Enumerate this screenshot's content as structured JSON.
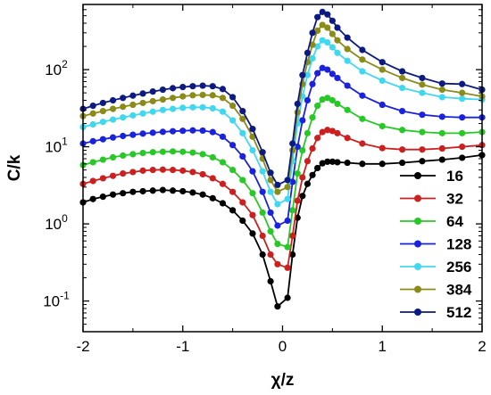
{
  "chart_data": {
    "type": "line",
    "xlabel": "χ/z",
    "ylabel": "C/k",
    "xlim": [
      -2,
      2
    ],
    "ylim": [
      0.04,
      700
    ],
    "yscale": "log",
    "x_ticks": [
      "-2",
      "-1",
      "0",
      "1",
      "2"
    ],
    "y_ticks": [
      {
        "base": "10",
        "exp": "-1"
      },
      {
        "base": "10",
        "exp": "0"
      },
      {
        "base": "10",
        "exp": "1"
      },
      {
        "base": "10",
        "exp": "2"
      }
    ],
    "legend_position": "bottom-right",
    "series": [
      {
        "name": "16",
        "color": "#000000",
        "points": [
          [
            -2,
            1.9
          ],
          [
            -1.9,
            2.1
          ],
          [
            -1.8,
            2.25
          ],
          [
            -1.7,
            2.4
          ],
          [
            -1.6,
            2.5
          ],
          [
            -1.5,
            2.6
          ],
          [
            -1.4,
            2.65
          ],
          [
            -1.3,
            2.7
          ],
          [
            -1.2,
            2.75
          ],
          [
            -1.1,
            2.7
          ],
          [
            -1.0,
            2.65
          ],
          [
            -0.9,
            2.55
          ],
          [
            -0.8,
            2.4
          ],
          [
            -0.7,
            2.15
          ],
          [
            -0.6,
            1.85
          ],
          [
            -0.5,
            1.5
          ],
          [
            -0.4,
            1.1
          ],
          [
            -0.3,
            0.75
          ],
          [
            -0.2,
            0.4
          ],
          [
            -0.12,
            0.18
          ],
          [
            -0.05,
            0.085
          ],
          [
            0.05,
            0.11
          ],
          [
            0.1,
            0.4
          ],
          [
            0.15,
            1.2
          ],
          [
            0.2,
            2.3
          ],
          [
            0.25,
            3.3
          ],
          [
            0.3,
            4.3
          ],
          [
            0.35,
            5.3
          ],
          [
            0.4,
            6.1
          ],
          [
            0.45,
            6.4
          ],
          [
            0.5,
            6.4
          ],
          [
            0.55,
            6.3
          ],
          [
            0.65,
            6.2
          ],
          [
            0.8,
            6.0
          ],
          [
            1.0,
            6.0
          ],
          [
            1.2,
            6.2
          ],
          [
            1.4,
            6.5
          ],
          [
            1.6,
            6.8
          ],
          [
            1.8,
            7.2
          ],
          [
            2.0,
            7.8
          ]
        ]
      },
      {
        "name": "32",
        "color": "#cc2020",
        "points": [
          [
            -2,
            3.3
          ],
          [
            -1.9,
            3.6
          ],
          [
            -1.8,
            3.9
          ],
          [
            -1.7,
            4.2
          ],
          [
            -1.6,
            4.5
          ],
          [
            -1.5,
            4.7
          ],
          [
            -1.4,
            4.9
          ],
          [
            -1.3,
            5.0
          ],
          [
            -1.2,
            5.05
          ],
          [
            -1.1,
            5.0
          ],
          [
            -1.0,
            4.9
          ],
          [
            -0.9,
            4.7
          ],
          [
            -0.8,
            4.4
          ],
          [
            -0.7,
            3.9
          ],
          [
            -0.6,
            3.3
          ],
          [
            -0.5,
            2.6
          ],
          [
            -0.4,
            1.9
          ],
          [
            -0.3,
            1.3
          ],
          [
            -0.2,
            0.7
          ],
          [
            -0.12,
            0.4
          ],
          [
            -0.05,
            0.3
          ],
          [
            0.05,
            0.27
          ],
          [
            0.1,
            0.7
          ],
          [
            0.15,
            2.0
          ],
          [
            0.2,
            4.0
          ],
          [
            0.25,
            6.5
          ],
          [
            0.3,
            9.5
          ],
          [
            0.35,
            13.0
          ],
          [
            0.4,
            15.5
          ],
          [
            0.45,
            16.5
          ],
          [
            0.5,
            16.0
          ],
          [
            0.55,
            15.0
          ],
          [
            0.65,
            13.0
          ],
          [
            0.8,
            11.0
          ],
          [
            1.0,
            9.6
          ],
          [
            1.2,
            9.2
          ],
          [
            1.4,
            9.2
          ],
          [
            1.6,
            9.5
          ],
          [
            1.8,
            10.0
          ],
          [
            2.0,
            10.5
          ]
        ]
      },
      {
        "name": "64",
        "color": "#28c828",
        "points": [
          [
            -2,
            5.8
          ],
          [
            -1.9,
            6.3
          ],
          [
            -1.8,
            6.8
          ],
          [
            -1.7,
            7.3
          ],
          [
            -1.6,
            7.7
          ],
          [
            -1.5,
            8.0
          ],
          [
            -1.4,
            8.3
          ],
          [
            -1.3,
            8.5
          ],
          [
            -1.2,
            8.6
          ],
          [
            -1.1,
            8.7
          ],
          [
            -1.0,
            8.6
          ],
          [
            -0.9,
            8.4
          ],
          [
            -0.8,
            8.0
          ],
          [
            -0.7,
            7.3
          ],
          [
            -0.6,
            6.3
          ],
          [
            -0.5,
            5.0
          ],
          [
            -0.4,
            3.7
          ],
          [
            -0.3,
            2.5
          ],
          [
            -0.2,
            1.4
          ],
          [
            -0.12,
            0.8
          ],
          [
            -0.05,
            0.55
          ],
          [
            0.05,
            0.5
          ],
          [
            0.1,
            1.5
          ],
          [
            0.15,
            4.5
          ],
          [
            0.2,
            9.0
          ],
          [
            0.25,
            15.0
          ],
          [
            0.3,
            24.0
          ],
          [
            0.35,
            34.0
          ],
          [
            0.4,
            41.0
          ],
          [
            0.45,
            43.0
          ],
          [
            0.5,
            40.0
          ],
          [
            0.55,
            36.0
          ],
          [
            0.65,
            30.0
          ],
          [
            0.8,
            23.0
          ],
          [
            1.0,
            18.5
          ],
          [
            1.2,
            16.5
          ],
          [
            1.4,
            15.5
          ],
          [
            1.6,
            15.0
          ],
          [
            1.8,
            15.0
          ],
          [
            2.0,
            15.5
          ]
        ]
      },
      {
        "name": "128",
        "color": "#1a22dd",
        "points": [
          [
            -2,
            11.0
          ],
          [
            -1.9,
            11.8
          ],
          [
            -1.8,
            12.5
          ],
          [
            -1.7,
            13.2
          ],
          [
            -1.6,
            13.8
          ],
          [
            -1.5,
            14.3
          ],
          [
            -1.4,
            14.8
          ],
          [
            -1.3,
            15.2
          ],
          [
            -1.2,
            15.6
          ],
          [
            -1.1,
            15.9
          ],
          [
            -1.0,
            16.1
          ],
          [
            -0.9,
            16.3
          ],
          [
            -0.8,
            16.2
          ],
          [
            -0.7,
            15.5
          ],
          [
            -0.6,
            13.5
          ],
          [
            -0.5,
            10.5
          ],
          [
            -0.4,
            7.5
          ],
          [
            -0.3,
            4.8
          ],
          [
            -0.2,
            2.6
          ],
          [
            -0.12,
            1.4
          ],
          [
            -0.05,
            0.95
          ],
          [
            0.05,
            1.1
          ],
          [
            0.1,
            3.5
          ],
          [
            0.15,
            10.0
          ],
          [
            0.2,
            22.0
          ],
          [
            0.25,
            40.0
          ],
          [
            0.3,
            65.0
          ],
          [
            0.35,
            90.0
          ],
          [
            0.4,
            105.0
          ],
          [
            0.45,
            100.0
          ],
          [
            0.5,
            88.0
          ],
          [
            0.55,
            78.0
          ],
          [
            0.65,
            62.0
          ],
          [
            0.8,
            46.0
          ],
          [
            1.0,
            35.0
          ],
          [
            1.2,
            29.0
          ],
          [
            1.4,
            26.0
          ],
          [
            1.6,
            24.5
          ],
          [
            1.8,
            24.0
          ],
          [
            2.0,
            24.0
          ]
        ]
      },
      {
        "name": "256",
        "color": "#40d8f0",
        "points": [
          [
            -2,
            18.0
          ],
          [
            -1.9,
            19.5
          ],
          [
            -1.8,
            21.0
          ],
          [
            -1.7,
            22.5
          ],
          [
            -1.6,
            24.0
          ],
          [
            -1.5,
            25.5
          ],
          [
            -1.4,
            27.0
          ],
          [
            -1.3,
            28.5
          ],
          [
            -1.2,
            30.0
          ],
          [
            -1.1,
            31.0
          ],
          [
            -1.0,
            32.0
          ],
          [
            -0.9,
            32.5
          ],
          [
            -0.8,
            32.5
          ],
          [
            -0.7,
            31.5
          ],
          [
            -0.6,
            28.5
          ],
          [
            -0.5,
            22.0
          ],
          [
            -0.4,
            15.0
          ],
          [
            -0.3,
            9.0
          ],
          [
            -0.2,
            4.8
          ],
          [
            -0.12,
            2.6
          ],
          [
            -0.05,
            1.8
          ],
          [
            0.05,
            2.1
          ],
          [
            0.1,
            6.5
          ],
          [
            0.15,
            20.0
          ],
          [
            0.2,
            45.0
          ],
          [
            0.25,
            85.0
          ],
          [
            0.3,
            140.0
          ],
          [
            0.35,
            200.0
          ],
          [
            0.4,
            240.0
          ],
          [
            0.45,
            225.0
          ],
          [
            0.5,
            195.0
          ],
          [
            0.55,
            165.0
          ],
          [
            0.65,
            130.0
          ],
          [
            0.8,
            95.0
          ],
          [
            1.0,
            72.0
          ],
          [
            1.2,
            58.0
          ],
          [
            1.4,
            50.0
          ],
          [
            1.6,
            44.0
          ],
          [
            1.8,
            42.0
          ],
          [
            2.0,
            41.0
          ]
        ]
      },
      {
        "name": "384",
        "color": "#8b8b1a",
        "points": [
          [
            -2,
            25.0
          ],
          [
            -1.9,
            27.0
          ],
          [
            -1.8,
            29.0
          ],
          [
            -1.7,
            31.0
          ],
          [
            -1.6,
            33.0
          ],
          [
            -1.5,
            35.0
          ],
          [
            -1.4,
            37.0
          ],
          [
            -1.3,
            39.0
          ],
          [
            -1.2,
            41.0
          ],
          [
            -1.1,
            43.0
          ],
          [
            -1.0,
            45.0
          ],
          [
            -0.9,
            46.5
          ],
          [
            -0.8,
            47.0
          ],
          [
            -0.7,
            46.5
          ],
          [
            -0.6,
            43.0
          ],
          [
            -0.5,
            34.0
          ],
          [
            -0.4,
            23.0
          ],
          [
            -0.3,
            13.5
          ],
          [
            -0.2,
            7.0
          ],
          [
            -0.12,
            3.7
          ],
          [
            -0.05,
            2.6
          ],
          [
            0.05,
            3.0
          ],
          [
            0.1,
            9.0
          ],
          [
            0.15,
            28.0
          ],
          [
            0.2,
            65.0
          ],
          [
            0.25,
            125.0
          ],
          [
            0.3,
            210.0
          ],
          [
            0.35,
            320.0
          ],
          [
            0.4,
            380.0
          ],
          [
            0.45,
            350.0
          ],
          [
            0.5,
            290.0
          ],
          [
            0.55,
            240.0
          ],
          [
            0.65,
            185.0
          ],
          [
            0.8,
            135.0
          ],
          [
            1.0,
            100.0
          ],
          [
            1.2,
            78.0
          ],
          [
            1.4,
            64.0
          ],
          [
            1.6,
            55.0
          ],
          [
            1.8,
            50.0
          ],
          [
            2.0,
            45.0
          ]
        ]
      },
      {
        "name": "512",
        "color": "#0d1a82",
        "points": [
          [
            -2,
            31.0
          ],
          [
            -1.9,
            34.0
          ],
          [
            -1.8,
            37.0
          ],
          [
            -1.7,
            40.0
          ],
          [
            -1.6,
            43.0
          ],
          [
            -1.5,
            46.0
          ],
          [
            -1.4,
            49.0
          ],
          [
            -1.3,
            52.0
          ],
          [
            -1.2,
            55.0
          ],
          [
            -1.1,
            57.5
          ],
          [
            -1.0,
            59.5
          ],
          [
            -0.9,
            61.0
          ],
          [
            -0.8,
            62.0
          ],
          [
            -0.7,
            61.0
          ],
          [
            -0.6,
            56.0
          ],
          [
            -0.5,
            44.0
          ],
          [
            -0.4,
            29.0
          ],
          [
            -0.3,
            17.0
          ],
          [
            -0.2,
            8.5
          ],
          [
            -0.12,
            4.6
          ],
          [
            -0.05,
            3.2
          ],
          [
            0.05,
            3.7
          ],
          [
            0.1,
            11.0
          ],
          [
            0.15,
            36.0
          ],
          [
            0.2,
            85.0
          ],
          [
            0.25,
            165.0
          ],
          [
            0.3,
            300.0
          ],
          [
            0.35,
            480.0
          ],
          [
            0.4,
            560.0
          ],
          [
            0.45,
            520.0
          ],
          [
            0.5,
            430.0
          ],
          [
            0.55,
            350.0
          ],
          [
            0.65,
            260.0
          ],
          [
            0.8,
            180.0
          ],
          [
            1.0,
            125.0
          ],
          [
            1.2,
            95.0
          ],
          [
            1.4,
            78.0
          ],
          [
            1.6,
            66.0
          ],
          [
            1.8,
            65.0
          ],
          [
            2.0,
            55.0
          ]
        ]
      }
    ]
  }
}
